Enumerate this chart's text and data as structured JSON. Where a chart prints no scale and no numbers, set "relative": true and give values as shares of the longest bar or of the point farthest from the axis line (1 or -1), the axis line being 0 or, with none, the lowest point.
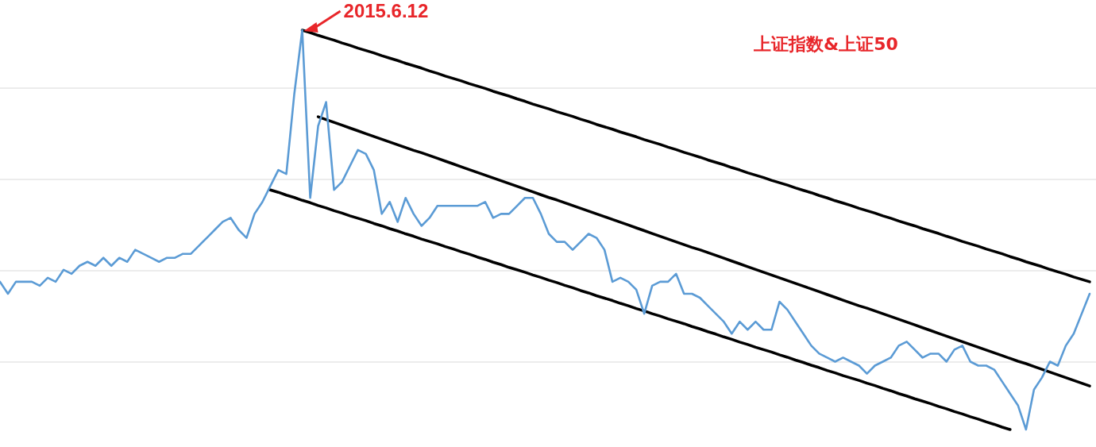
{
  "chart_data": {
    "type": "line",
    "title": "上证指数&上证50",
    "relative": true,
    "grid": "y",
    "categories": [
      null,
      null,
      null,
      null,
      null,
      null,
      null,
      null,
      null,
      null,
      null,
      null,
      null,
      null,
      null,
      null,
      null,
      null,
      null,
      null,
      null,
      null,
      null,
      null,
      null,
      null,
      null,
      null,
      null,
      null,
      null,
      null,
      null,
      null,
      null,
      null,
      null,
      null,
      null,
      null,
      null,
      null,
      null,
      null,
      null,
      null,
      null,
      null,
      null,
      null,
      null,
      null,
      null,
      null,
      null,
      null,
      null,
      null,
      null,
      null,
      null,
      null,
      null,
      null,
      null,
      null,
      null,
      null,
      null,
      null,
      null,
      null,
      null,
      null,
      null,
      null,
      null,
      null,
      null,
      null,
      null,
      null,
      null,
      null,
      null,
      null,
      null,
      null,
      null,
      null,
      null,
      null,
      null,
      null,
      null,
      null,
      null,
      null,
      null,
      null,
      null,
      null,
      null,
      null,
      null,
      null,
      null,
      null,
      null,
      null,
      null,
      null,
      null,
      null,
      null,
      null,
      null,
      null,
      null,
      null,
      null,
      null,
      null,
      null,
      null,
      null,
      null,
      null,
      null,
      null,
      null,
      null,
      null,
      null,
      null,
      null,
      null,
      null
    ],
    "series": [
      {
        "color": "#5b9bd5",
        "values": [
          0.37,
          0.34,
          0.37,
          0.37,
          0.37,
          0.36,
          0.38,
          0.37,
          0.4,
          0.39,
          0.41,
          0.42,
          0.41,
          0.43,
          0.41,
          0.43,
          0.42,
          0.45,
          0.44,
          0.43,
          0.42,
          0.43,
          0.43,
          0.44,
          0.44,
          0.46,
          0.48,
          0.5,
          0.52,
          0.53,
          0.5,
          0.48,
          0.54,
          0.57,
          0.61,
          0.65,
          0.64,
          0.84,
          1.0,
          0.58,
          0.76,
          0.82,
          0.6,
          0.62,
          0.66,
          0.7,
          0.69,
          0.65,
          0.54,
          0.57,
          0.52,
          0.58,
          0.54,
          0.51,
          0.53,
          0.56,
          0.56,
          0.56,
          0.56,
          0.56,
          0.56,
          0.57,
          0.53,
          0.54,
          0.54,
          0.56,
          0.58,
          0.58,
          0.54,
          0.49,
          0.47,
          0.47,
          0.45,
          0.47,
          0.49,
          0.48,
          0.45,
          0.37,
          0.38,
          0.37,
          0.35,
          0.29,
          0.36,
          0.37,
          0.37,
          0.39,
          0.34,
          0.34,
          0.33,
          0.31,
          0.29,
          0.27,
          0.24,
          0.27,
          0.25,
          0.27,
          0.25,
          0.25,
          0.32,
          0.3,
          0.27,
          0.24,
          0.21,
          0.19,
          0.18,
          0.17,
          0.18,
          0.17,
          0.16,
          0.14,
          0.16,
          0.17,
          0.18,
          0.21,
          0.22,
          0.2,
          0.18,
          0.19,
          0.19,
          0.17,
          0.2,
          0.21,
          0.17,
          0.16,
          0.16,
          0.15,
          0.12,
          0.09,
          0.06,
          0,
          0.1,
          0.13,
          0.17,
          0.16,
          0.21,
          0.24,
          0.29,
          0.34
        ]
      },
      {
        "type": "line",
        "color": "#000000",
        "values": [
          null,
          null,
          null,
          null,
          null,
          null,
          null,
          null,
          null,
          null,
          null,
          null,
          null,
          null,
          null,
          null,
          null,
          null,
          null,
          null,
          null,
          null,
          null,
          null,
          null,
          null,
          null,
          null,
          null,
          null,
          null,
          null,
          null,
          null,
          null,
          null,
          null,
          null,
          1.0,
          0.994,
          0.987,
          0.981,
          0.975,
          0.968,
          0.962,
          0.955,
          0.949,
          0.943,
          0.936,
          0.93,
          0.924,
          0.917,
          0.911,
          0.905,
          0.898,
          0.892,
          0.885,
          0.879,
          0.873,
          0.866,
          0.86,
          0.854,
          0.847,
          0.841,
          0.835,
          0.828,
          0.822,
          0.815,
          0.809,
          0.803,
          0.796,
          0.79,
          0.784,
          0.777,
          0.771,
          0.764,
          0.758,
          0.752,
          0.745,
          0.739,
          0.733,
          0.726,
          0.72,
          0.714,
          0.707,
          0.701,
          0.694,
          0.688,
          0.682,
          0.675,
          0.669,
          0.663,
          0.656,
          0.65,
          0.643,
          0.637,
          0.631,
          0.624,
          0.618,
          0.612,
          0.605,
          0.599,
          0.593,
          0.586,
          0.58,
          0.573,
          0.567,
          0.561,
          0.554,
          0.548,
          0.542,
          0.535,
          0.529,
          0.522,
          0.516,
          0.51,
          0.503,
          0.497,
          0.491,
          0.484,
          0.478,
          0.471,
          0.465,
          0.459,
          0.452,
          0.446,
          0.44,
          0.433,
          0.427,
          0.42,
          0.414,
          0.408,
          0.401,
          0.395,
          0.389,
          0.382,
          0.376,
          0.37
        ]
      },
      {
        "type": "line",
        "color": "#000000",
        "values": [
          null,
          null,
          null,
          null,
          null,
          null,
          null,
          null,
          null,
          null,
          null,
          null,
          null,
          null,
          null,
          null,
          null,
          null,
          null,
          null,
          null,
          null,
          null,
          null,
          null,
          null,
          null,
          null,
          null,
          null,
          null,
          null,
          null,
          null,
          null,
          null,
          null,
          null,
          null,
          null,
          0.783,
          0.776,
          0.769,
          0.762,
          0.755,
          0.748,
          0.741,
          0.734,
          0.727,
          0.72,
          0.713,
          0.706,
          0.699,
          0.693,
          0.686,
          0.679,
          0.672,
          0.665,
          0.658,
          0.651,
          0.644,
          0.637,
          0.63,
          0.623,
          0.616,
          0.609,
          0.602,
          0.595,
          0.588,
          0.581,
          0.575,
          0.568,
          0.561,
          0.554,
          0.547,
          0.54,
          0.533,
          0.526,
          0.519,
          0.512,
          0.505,
          0.498,
          0.491,
          0.484,
          0.477,
          0.47,
          0.463,
          0.456,
          0.45,
          0.443,
          0.436,
          0.429,
          0.422,
          0.415,
          0.408,
          0.401,
          0.394,
          0.387,
          0.38,
          0.373,
          0.366,
          0.359,
          0.352,
          0.345,
          0.338,
          0.331,
          0.324,
          0.317,
          0.31,
          0.304,
          0.297,
          0.29,
          0.283,
          0.276,
          0.269,
          0.262,
          0.255,
          0.248,
          0.241,
          0.234,
          0.227,
          0.22,
          0.213,
          0.206,
          0.199,
          0.192,
          0.185,
          0.178,
          0.171,
          0.165,
          0.158,
          0.151,
          0.144,
          0.137,
          0.13,
          0.123,
          0.116,
          0.109
        ]
      },
      {
        "type": "line",
        "color": "#000000",
        "values": [
          null,
          null,
          null,
          null,
          null,
          null,
          null,
          null,
          null,
          null,
          null,
          null,
          null,
          null,
          null,
          null,
          null,
          null,
          null,
          null,
          null,
          null,
          null,
          null,
          null,
          null,
          null,
          null,
          null,
          null,
          null,
          null,
          null,
          null,
          0.6,
          0.594,
          0.587,
          0.581,
          0.574,
          0.568,
          0.561,
          0.555,
          0.548,
          0.542,
          0.535,
          0.529,
          0.523,
          0.516,
          0.51,
          0.503,
          0.497,
          0.49,
          0.484,
          0.477,
          0.471,
          0.465,
          0.458,
          0.452,
          0.445,
          0.439,
          0.432,
          0.426,
          0.419,
          0.413,
          0.406,
          0.4,
          0.394,
          0.387,
          0.381,
          0.374,
          0.368,
          0.361,
          0.355,
          0.348,
          0.342,
          0.335,
          0.329,
          0.323,
          0.316,
          0.31,
          0.303,
          0.297,
          0.29,
          0.284,
          0.277,
          0.271,
          0.265,
          0.258,
          0.252,
          0.245,
          0.239,
          0.232,
          0.226,
          0.219,
          0.213,
          0.206,
          0.2,
          0.194,
          0.187,
          0.181,
          0.174,
          0.168,
          0.161,
          0.155,
          0.148,
          0.142,
          0.135,
          0.129,
          0.123,
          0.116,
          0.11,
          0.103,
          0.097,
          0.09,
          0.084,
          0.077,
          0.071,
          0.065,
          0.058,
          0.052,
          0.045,
          0.039,
          0.032,
          0.026,
          0.019,
          0.013,
          0.006,
          0,
          null,
          null,
          null,
          null,
          null,
          null,
          null,
          null,
          null,
          null
        ]
      }
    ],
    "annotations": [
      "2015.6.12"
    ]
  }
}
